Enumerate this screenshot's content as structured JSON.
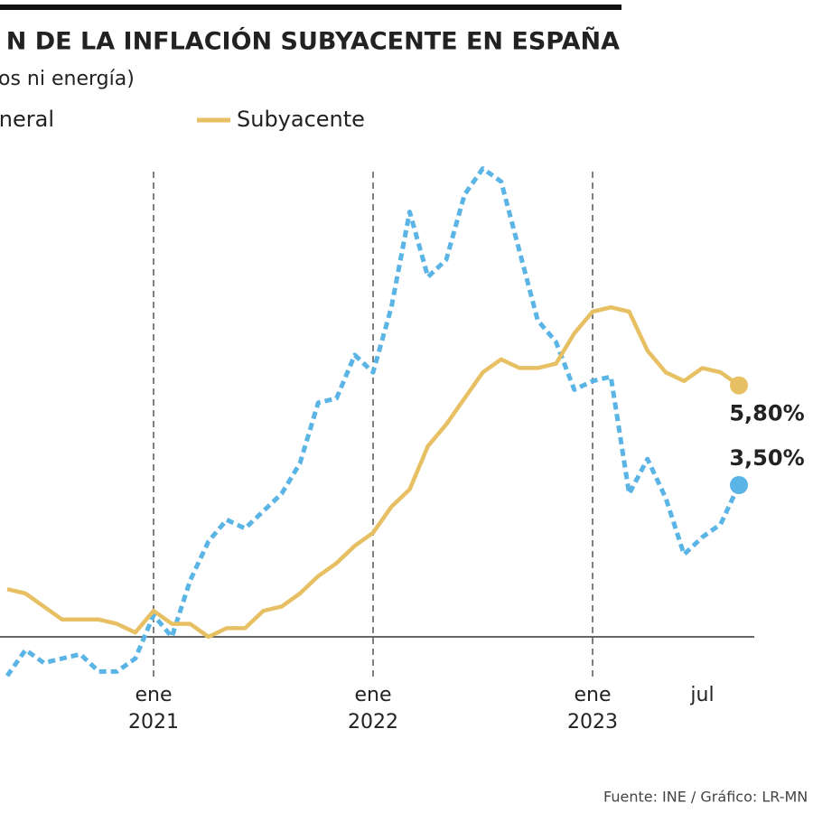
{
  "chart_data": {
    "type": "line",
    "title": "N DE LA INFLACIÓN SUBYACENTE EN ESPAÑA",
    "subtitle": "os ni energía)",
    "source": "Fuente: INE / Gráfico: LR-MN",
    "categories": [
      null,
      null,
      null,
      null,
      null,
      null,
      null,
      null,
      "ene 2021",
      null,
      null,
      null,
      null,
      null,
      null,
      null,
      null,
      null,
      null,
      null,
      "ene 2022",
      null,
      null,
      null,
      null,
      null,
      null,
      null,
      null,
      null,
      null,
      null,
      "ene 2023",
      null,
      null,
      null,
      null,
      null,
      "jul",
      null,
      null
    ],
    "series": [
      {
        "name": "eneral",
        "color": "#5ab4e5",
        "dashed": true,
        "values": [
          -0.9,
          -0.3,
          -0.6,
          -0.5,
          -0.4,
          -0.8,
          -0.8,
          -0.5,
          0.5,
          0.0,
          1.3,
          2.2,
          2.7,
          2.5,
          2.9,
          3.3,
          4.0,
          5.4,
          5.5,
          6.5,
          6.1,
          7.6,
          9.8,
          8.3,
          8.7,
          10.2,
          10.8,
          10.5,
          8.9,
          7.3,
          6.8,
          5.7,
          5.9,
          6.0,
          3.3,
          4.1,
          3.2,
          1.9,
          2.3,
          2.6,
          3.5
        ],
        "value_labels": [
          null,
          null,
          null,
          null,
          null,
          null,
          null,
          null,
          null,
          null,
          null,
          null,
          null,
          null,
          null,
          null,
          null,
          null,
          null,
          null,
          null,
          null,
          null,
          null,
          null,
          null,
          null,
          null,
          null,
          null,
          null,
          null,
          null,
          null,
          null,
          null,
          null,
          null,
          null,
          null,
          "3,50%"
        ]
      },
      {
        "name": "Subyacente",
        "color": "#e8c064",
        "dashed": false,
        "values": [
          1.1,
          1.0,
          0.7,
          0.4,
          0.4,
          0.4,
          0.3,
          0.1,
          0.6,
          0.3,
          0.3,
          0.0,
          0.2,
          0.2,
          0.6,
          0.7,
          1.0,
          1.4,
          1.7,
          2.1,
          2.4,
          3.0,
          3.4,
          4.4,
          4.9,
          5.5,
          6.1,
          6.4,
          6.2,
          6.2,
          6.3,
          7.0,
          7.5,
          7.6,
          7.5,
          6.6,
          6.1,
          5.9,
          6.2,
          6.1,
          5.8
        ],
        "value_labels": [
          null,
          null,
          null,
          null,
          null,
          null,
          null,
          null,
          null,
          null,
          null,
          null,
          null,
          null,
          null,
          null,
          null,
          null,
          null,
          null,
          null,
          null,
          null,
          null,
          null,
          null,
          null,
          null,
          null,
          null,
          null,
          null,
          null,
          null,
          null,
          null,
          null,
          null,
          null,
          null,
          "5,80%"
        ]
      }
    ],
    "ylim": [
      -1.5,
      11
    ]
  }
}
